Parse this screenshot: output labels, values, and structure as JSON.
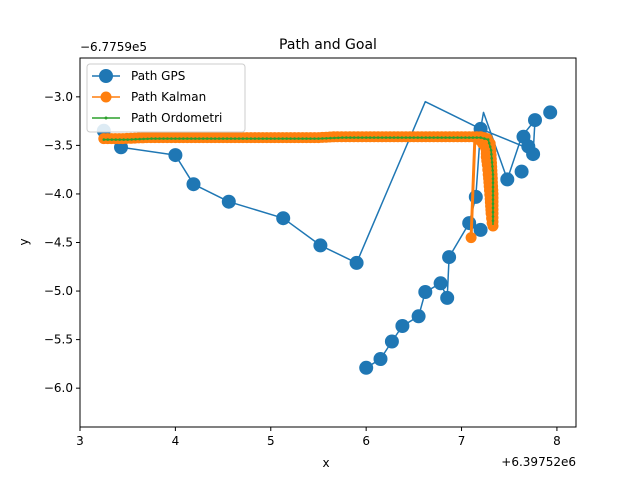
{
  "chart_data": {
    "type": "line",
    "title": "Path and Goal",
    "xlabel": "x",
    "ylabel": "y",
    "x_offset_label": "+6.39752e6",
    "y_offset_label": "−6.7759e5",
    "xlim": [
      3.0,
      8.2
    ],
    "ylim": [
      -6.4,
      -2.6
    ],
    "x_ticks": [
      3,
      4,
      5,
      6,
      7,
      8
    ],
    "x_tick_labels": [
      "3",
      "4",
      "5",
      "6",
      "7",
      "8"
    ],
    "y_ticks": [
      -3.0,
      -3.5,
      -4.0,
      -4.5,
      -5.0,
      -5.5,
      -6.0
    ],
    "y_tick_labels": [
      "−3.0",
      "−3.5",
      "−4.0",
      "−4.5",
      "−5.0",
      "−5.5",
      "−6.0"
    ],
    "grid": false,
    "legend_position": "top-left",
    "series": [
      {
        "name": "Path GPS",
        "color": "#1f77b4",
        "marker": "circle-large",
        "x": [
          6.0,
          6.15,
          6.27,
          6.38,
          6.55,
          6.62,
          6.78,
          6.85,
          6.87,
          7.08,
          7.15,
          7.2,
          7.65,
          7.75,
          7.77,
          7.63,
          7.48,
          7.23,
          7.2,
          6.85,
          6.62,
          5.9,
          5.52,
          5.13,
          4.56,
          4.19,
          4.0,
          3.43,
          3.25
        ],
        "y": [
          -5.79,
          -5.7,
          -5.52,
          -5.36,
          -5.26,
          -5.01,
          -4.92,
          -5.07,
          -4.65,
          -4.3,
          -4.03,
          -3.33,
          -3.51,
          -3.59,
          -3.24,
          -3.41,
          -3.85,
          -3.16,
          -3.33,
          -3.16,
          -3.05,
          -4.71,
          -4.53,
          -4.25,
          -4.08,
          -3.9,
          -3.6,
          -3.52,
          -3.35
        ],
        "points_x": [
          6.0,
          6.15,
          6.27,
          6.38,
          6.55,
          6.62,
          6.78,
          6.85,
          6.87,
          7.08,
          7.15,
          7.2,
          7.65,
          7.7,
          7.75,
          7.77,
          7.93,
          7.63,
          7.48,
          7.2,
          5.9,
          5.52,
          5.13,
          4.56,
          4.19,
          4.0,
          3.43,
          3.25
        ],
        "points_y": [
          -5.79,
          -5.7,
          -5.52,
          -5.36,
          -5.26,
          -5.01,
          -4.92,
          -5.07,
          -4.65,
          -4.3,
          -4.03,
          -3.33,
          -3.41,
          -3.51,
          -3.59,
          -3.24,
          -3.16,
          -3.77,
          -3.85,
          -4.37,
          -4.71,
          -4.53,
          -4.25,
          -4.08,
          -3.9,
          -3.6,
          -3.52,
          -3.35
        ]
      },
      {
        "name": "Path Kalman",
        "color": "#ff7f0e",
        "marker": "circle",
        "x": [
          3.25,
          3.45,
          3.7,
          4.0,
          4.5,
          5.0,
          5.5,
          5.7,
          6.0,
          6.5,
          7.0,
          7.2,
          7.27,
          7.3,
          7.31,
          7.32,
          7.33,
          7.33,
          7.33,
          7.32,
          7.31,
          7.3,
          7.29,
          7.28,
          7.27,
          7.26,
          7.26,
          7.25,
          7.22,
          7.18,
          7.14,
          7.1
        ],
        "y": [
          -3.43,
          -3.43,
          -3.42,
          -3.42,
          -3.42,
          -3.42,
          -3.42,
          -3.41,
          -3.41,
          -3.41,
          -3.41,
          -3.41,
          -3.43,
          -3.48,
          -3.6,
          -3.8,
          -4.0,
          -4.2,
          -4.33,
          -4.3,
          -4.2,
          -4.05,
          -3.92,
          -3.8,
          -3.7,
          -3.62,
          -3.55,
          -3.52,
          -3.48,
          -3.44,
          -3.42,
          -4.45
        ]
      },
      {
        "name": "Path Ordometri",
        "color": "#2ca02c",
        "marker": "point",
        "x": [
          3.25,
          3.5,
          3.75,
          4.0,
          4.5,
          5.0,
          5.5,
          5.75,
          6.0,
          6.5,
          7.0,
          7.2,
          7.28,
          7.31,
          7.33,
          7.33,
          7.33
        ],
        "y": [
          -3.44,
          -3.44,
          -3.43,
          -3.43,
          -3.43,
          -3.43,
          -3.43,
          -3.42,
          -3.42,
          -3.42,
          -3.42,
          -3.42,
          -3.44,
          -3.55,
          -3.8,
          -4.1,
          -4.32
        ]
      }
    ]
  }
}
